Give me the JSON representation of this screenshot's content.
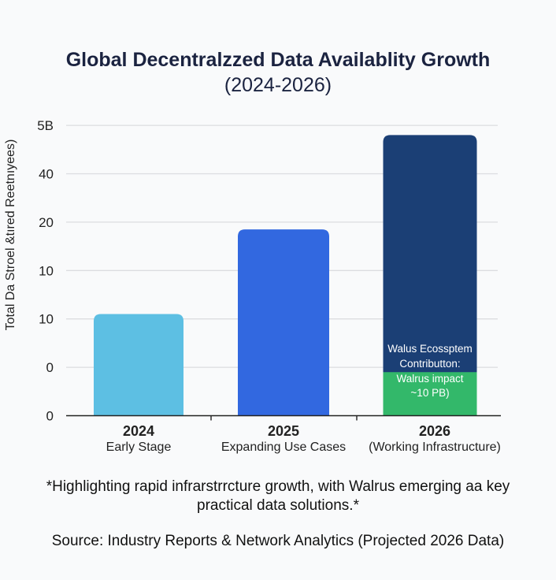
{
  "chart_data": {
    "type": "bar",
    "title": "Global Decentralzzed Data Availablity Growth",
    "subtitle": "(2024-2026)",
    "xlabel": "",
    "ylabel": "Total Da Stroel &tıred Reetnıyees)",
    "ytick_labels": [
      "0",
      "0",
      "10",
      "10",
      "20",
      "40",
      "5B"
    ],
    "ylim_tick_units": [
      0,
      6
    ],
    "grid": true,
    "categories": [
      {
        "year": "2024",
        "label": "Early Stage"
      },
      {
        "year": "2025",
        "label": "Expanding Use Cases"
      },
      {
        "year": "2026",
        "label": "(Working Infrastructure)"
      }
    ],
    "values_tick_units": [
      2.1,
      3.85,
      5.8
    ],
    "bar_colors": [
      "#5dbfe3",
      "#3268e0",
      "#1b3f75"
    ],
    "stacked_segment": {
      "category": "2026",
      "value_tick_units": 0.9,
      "color": "#33b86a",
      "label_lines": [
        "Walus Ecossptem",
        "Contributton:",
        "Walrus impact",
        "~10 PB)"
      ]
    }
  },
  "footnote_lines": [
    "*Highlighting rapid infrarstrrcture growth, with Walrus emerging aa key",
    "practical data solutions.*"
  ],
  "source": "Source: Industry Reports & Network Analytics (Projected 2026 Data)"
}
